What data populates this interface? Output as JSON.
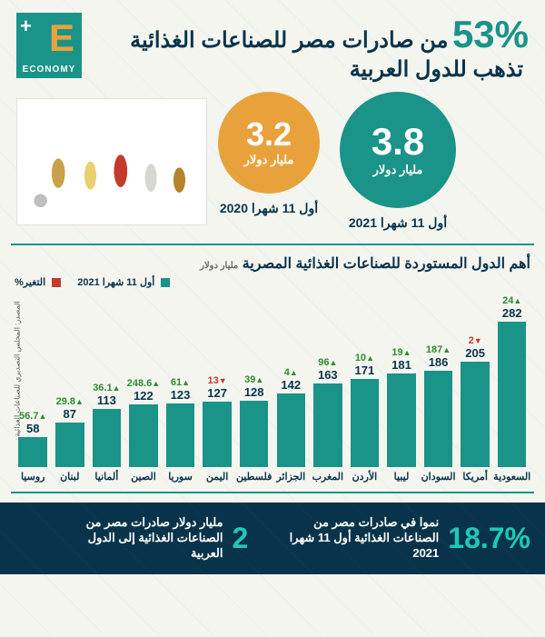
{
  "logo": {
    "letter": "E",
    "plus": "+",
    "word": "ECONOMY"
  },
  "headline": {
    "percent": "53%",
    "line1": "من صادرات مصر للصناعات الغذائية",
    "line2": "تذهب للدول العربية"
  },
  "top_stats": {
    "primary": {
      "value": "3.8",
      "unit": "مليار دولار",
      "caption": "أول 11 شهرا 2021",
      "color": "#1a9388"
    },
    "secondary": {
      "value": "3.2",
      "unit": "مليار دولار",
      "caption": "أول 11 شهرا 2020",
      "color": "#e9a23b"
    }
  },
  "chart": {
    "title": "أهم الدول المستوردة للصناعات الغذائية المصرية",
    "subtitle_unit": "مليار دولار",
    "legend_value": "أول 11 شهرا 2021",
    "legend_change": "التغير%",
    "value_color": "#1a9388",
    "up_color": "#2e8b2e",
    "down_color": "#c43a2d",
    "max_value": 282,
    "bars": [
      {
        "country": "السعودية",
        "value": 282,
        "change": 24,
        "up": true
      },
      {
        "country": "أمريكا",
        "value": 205,
        "change": 2,
        "up": false
      },
      {
        "country": "السودان",
        "value": 186,
        "change": 187,
        "up": true
      },
      {
        "country": "ليبيا",
        "value": 181,
        "change": 19,
        "up": true
      },
      {
        "country": "الأردن",
        "value": 171,
        "change": 10,
        "up": true
      },
      {
        "country": "المغرب",
        "value": 163,
        "change": 96,
        "up": true
      },
      {
        "country": "الجزائر",
        "value": 142,
        "change": 4,
        "up": true
      },
      {
        "country": "فلسطين",
        "value": 128,
        "change": 39,
        "up": true
      },
      {
        "country": "اليمن",
        "value": 127,
        "change": 13,
        "up": false
      },
      {
        "country": "سوريا",
        "value": 123,
        "change": 61,
        "up": true
      },
      {
        "country": "الصين",
        "value": 122,
        "change": 248.6,
        "up": true
      },
      {
        "country": "ألمانيا",
        "value": 113,
        "change": 36.1,
        "up": true
      },
      {
        "country": "لبنان",
        "value": 87,
        "change": 29.8,
        "up": true
      },
      {
        "country": "روسيا",
        "value": 58,
        "change": 56.7,
        "up": true
      }
    ],
    "source": "المصدر: المجلس التصديري للصناعات الغذائية"
  },
  "footer": {
    "growth_pct": "18.7%",
    "growth_text": "نموا في صادرات مصر من الصناعات الغذائية أول 11 شهرا 2021",
    "value_num": "2",
    "value_text": "مليار دولار صادرات مصر من الصناعات الغذائية إلى الدول العربية"
  }
}
